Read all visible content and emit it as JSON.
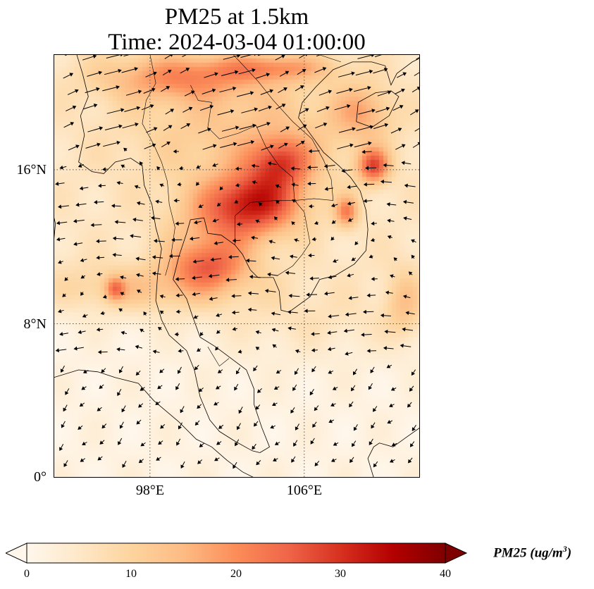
{
  "title": {
    "line1": "PM25 at 1.5km",
    "line2": "Time: 2024-03-04 01:00:00"
  },
  "map": {
    "lon_range": [
      93,
      112
    ],
    "lat_range": [
      0,
      22
    ],
    "lat_labels": [
      "16°N",
      "8°N",
      "0°"
    ],
    "lon_labels": [
      "98°E",
      "106°E"
    ],
    "gridlines": "dotted",
    "colormap": "OrRd",
    "wind_vectors": true
  },
  "colorbar": {
    "ticks": [
      "0",
      "10",
      "20",
      "30",
      "40"
    ],
    "range": [
      0,
      40
    ],
    "label_main": "PM25 (ug/m",
    "label_sup": "3",
    "label_close": ")",
    "extend": "both",
    "colors": [
      "#fff7ec",
      "#fee8c8",
      "#fdd49e",
      "#fdbb84",
      "#fc8d59",
      "#ef6548",
      "#d7301f",
      "#b30000",
      "#7f0000"
    ]
  }
}
